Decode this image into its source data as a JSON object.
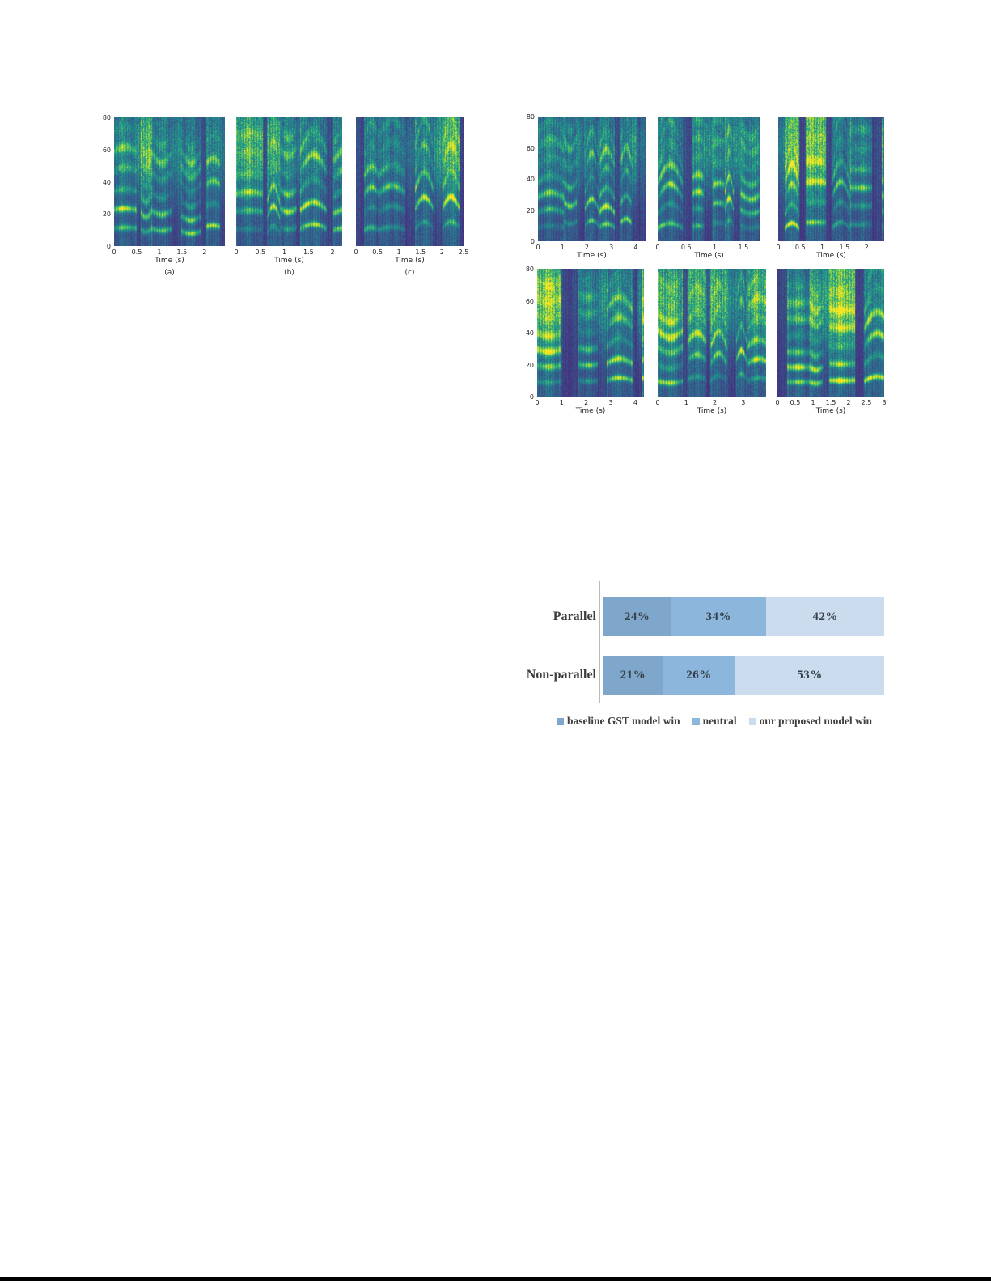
{
  "figures": {
    "left": {
      "yticks": [
        "0",
        "20",
        "40",
        "60",
        "80"
      ],
      "xlabel": "Time (s)",
      "subplots": [
        {
          "caption": "(a)",
          "xticks": [
            "0",
            "0.5",
            "1",
            "1.5",
            "2"
          ],
          "xmax": 2.45
        },
        {
          "caption": "(b)",
          "xticks": [
            "0",
            "0.5",
            "1",
            "1.5",
            "2"
          ],
          "xmax": 2.2
        },
        {
          "caption": "(c)",
          "xticks": [
            "0",
            "0.5",
            "1",
            "1.5",
            "2",
            "2.5"
          ],
          "xmax": 2.5
        }
      ]
    },
    "right": {
      "yticks": [
        "0",
        "20",
        "40",
        "60",
        "80"
      ],
      "xlabel": "Time (s)",
      "rows": [
        [
          {
            "xticks": [
              "0",
              "1",
              "2",
              "3",
              "4"
            ],
            "xmax": 4.4
          },
          {
            "xticks": [
              "0",
              "0.5",
              "1",
              "1.5"
            ],
            "xmax": 1.8
          },
          {
            "xticks": [
              "0",
              "0.5",
              "1",
              "1.5",
              "2"
            ],
            "xmax": 2.4
          }
        ],
        [
          {
            "xticks": [
              "0",
              "1",
              "2",
              "3",
              "4"
            ],
            "xmax": 4.35
          },
          {
            "xticks": [
              "0",
              "1",
              "2",
              "3"
            ],
            "xmax": 3.8
          },
          {
            "xticks": [
              "0",
              "0.5",
              "1",
              "1.5",
              "2",
              "2.5",
              "3"
            ],
            "xmax": 3.0
          }
        ]
      ]
    }
  },
  "preference_chart": {
    "categories": [
      {
        "label": "Parallel",
        "segments": [
          {
            "value": 24,
            "label": "24%"
          },
          {
            "value": 34,
            "label": "34%"
          },
          {
            "value": 42,
            "label": "42%"
          }
        ]
      },
      {
        "label": "Non-parallel",
        "segments": [
          {
            "value": 21,
            "label": "21%"
          },
          {
            "value": 26,
            "label": "26%"
          },
          {
            "value": 53,
            "label": "53%"
          }
        ]
      }
    ],
    "legend": [
      {
        "label": "baseline GST model win",
        "color": "#7ea7cb"
      },
      {
        "label": "neutral",
        "color": "#8cb6dc"
      },
      {
        "label": "our proposed model win",
        "color": "#cbdcee"
      }
    ]
  },
  "chart_data": [
    {
      "type": "heatmap",
      "title": "Mel-spectrogram comparison, subplots (a)(b)(c)",
      "xlabel": "Time (s)",
      "ylabel": "",
      "ylim": [
        0,
        80
      ],
      "yticks": [
        0,
        20,
        40,
        60,
        80
      ],
      "colormap": "viridis",
      "subplots": [
        {
          "caption": "(a)",
          "x_range": [
            0,
            2.45
          ],
          "xticks": [
            0,
            0.5,
            1,
            1.5,
            2
          ]
        },
        {
          "caption": "(b)",
          "x_range": [
            0,
            2.2
          ],
          "xticks": [
            0,
            0.5,
            1,
            1.5,
            2
          ]
        },
        {
          "caption": "(c)",
          "x_range": [
            0,
            2.5
          ],
          "xticks": [
            0,
            0.5,
            1,
            1.5,
            2,
            2.5
          ]
        }
      ]
    },
    {
      "type": "heatmap",
      "title": "Mel-spectrogram grid, 2 rows x 3 columns",
      "xlabel": "Time (s)",
      "ylabel": "",
      "ylim": [
        0,
        80
      ],
      "yticks": [
        0,
        20,
        40,
        60,
        80
      ],
      "colormap": "viridis",
      "subplots": [
        {
          "row": 1,
          "col": 1,
          "x_range": [
            0,
            4.4
          ],
          "xticks": [
            0,
            1,
            2,
            3,
            4
          ]
        },
        {
          "row": 1,
          "col": 2,
          "x_range": [
            0,
            1.8
          ],
          "xticks": [
            0,
            0.5,
            1,
            1.5
          ]
        },
        {
          "row": 1,
          "col": 3,
          "x_range": [
            0,
            2.4
          ],
          "xticks": [
            0,
            0.5,
            1,
            1.5,
            2
          ]
        },
        {
          "row": 2,
          "col": 1,
          "x_range": [
            0,
            4.35
          ],
          "xticks": [
            0,
            1,
            2,
            3,
            4
          ]
        },
        {
          "row": 2,
          "col": 2,
          "x_range": [
            0,
            3.8
          ],
          "xticks": [
            0,
            1,
            2,
            3
          ]
        },
        {
          "row": 2,
          "col": 3,
          "x_range": [
            0,
            3.0
          ],
          "xticks": [
            0,
            0.5,
            1,
            1.5,
            2,
            2.5,
            3
          ]
        }
      ]
    },
    {
      "type": "bar",
      "stacked": true,
      "orientation": "horizontal",
      "categories": [
        "Parallel",
        "Non-parallel"
      ],
      "series": [
        {
          "name": "baseline GST model win",
          "values": [
            24,
            21
          ],
          "color": "#7ea7cb"
        },
        {
          "name": "neutral",
          "values": [
            34,
            26
          ],
          "color": "#8cb6dc"
        },
        {
          "name": "our proposed model win",
          "values": [
            42,
            53
          ],
          "color": "#cbdcee"
        }
      ],
      "xlim": [
        0,
        100
      ],
      "value_label_format": "percent",
      "legend_position": "bottom",
      "grid": false
    }
  ]
}
